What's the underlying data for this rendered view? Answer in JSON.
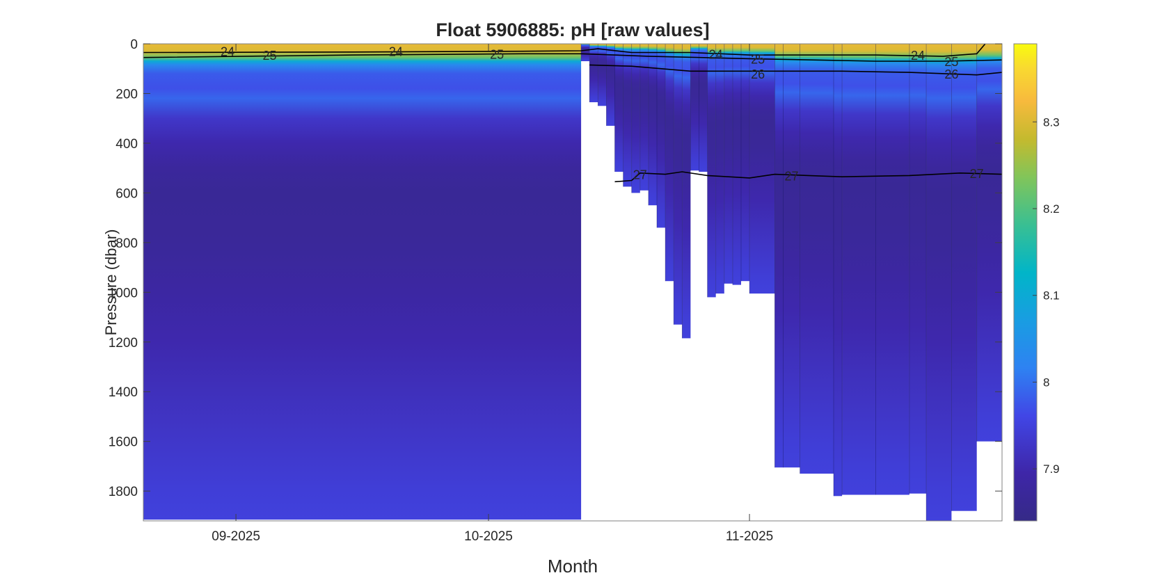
{
  "chart_data": {
    "type": "heatmap",
    "title": "Float 5906885: pH  [raw values]",
    "xlabel": "Month",
    "ylabel": "Pressure (dbar)",
    "x_range": [
      "2025-08-21",
      "2025-12-01"
    ],
    "y_range": [
      0,
      1920
    ],
    "y_reversed": true,
    "x_ticks": [
      "09-2025",
      "10-2025",
      "11-2025"
    ],
    "y_ticks": [
      0,
      200,
      400,
      600,
      800,
      1000,
      1200,
      1400,
      1600,
      1800
    ],
    "colorbar": {
      "range": [
        7.84,
        8.39
      ],
      "ticks": [
        "7.9",
        "8",
        "8.1",
        "8.2",
        "8.3"
      ],
      "colormap": "parula"
    },
    "profiles": [
      {
        "date": "2025-08-21",
        "max_pressure": 1915
      },
      {
        "date": "2025-10-12",
        "max_pressure": 70
      },
      {
        "date": "2025-10-13",
        "max_pressure": 235
      },
      {
        "date": "2025-10-14",
        "max_pressure": 250
      },
      {
        "date": "2025-10-15",
        "max_pressure": 330
      },
      {
        "date": "2025-10-16",
        "max_pressure": 515
      },
      {
        "date": "2025-10-17",
        "max_pressure": 575
      },
      {
        "date": "2025-10-18",
        "max_pressure": 600
      },
      {
        "date": "2025-10-19",
        "max_pressure": 590
      },
      {
        "date": "2025-10-20",
        "max_pressure": 650
      },
      {
        "date": "2025-10-21",
        "max_pressure": 740
      },
      {
        "date": "2025-10-22",
        "max_pressure": 955
      },
      {
        "date": "2025-10-23",
        "max_pressure": 1130
      },
      {
        "date": "2025-10-24",
        "max_pressure": 1185
      },
      {
        "date": "2025-10-25",
        "max_pressure": 510
      },
      {
        "date": "2025-10-26",
        "max_pressure": 515
      },
      {
        "date": "2025-10-27",
        "max_pressure": 1020
      },
      {
        "date": "2025-10-28",
        "max_pressure": 1005
      },
      {
        "date": "2025-10-29",
        "max_pressure": 965
      },
      {
        "date": "2025-10-30",
        "max_pressure": 970
      },
      {
        "date": "2025-10-31",
        "max_pressure": 955
      },
      {
        "date": "2025-11-01",
        "max_pressure": 1005
      },
      {
        "date": "2025-11-04",
        "max_pressure": 1705
      },
      {
        "date": "2025-11-05",
        "max_pressure": 1705
      },
      {
        "date": "2025-11-07",
        "max_pressure": 1730
      },
      {
        "date": "2025-11-11",
        "max_pressure": 1820
      },
      {
        "date": "2025-11-12",
        "max_pressure": 1815
      },
      {
        "date": "2025-11-16",
        "max_pressure": 1815
      },
      {
        "date": "2025-11-20",
        "max_pressure": 1810
      },
      {
        "date": "2025-11-22",
        "max_pressure": 1920
      },
      {
        "date": "2025-11-25",
        "max_pressure": 1880
      },
      {
        "date": "2025-11-28",
        "max_pressure": 1600
      },
      {
        "date": "2025-12-01",
        "max_pressure": 1600
      }
    ],
    "ph_profile": [
      {
        "p": 0,
        "ph": 8.31
      },
      {
        "p": 30,
        "ph": 8.3
      },
      {
        "p": 55,
        "ph": 8.22
      },
      {
        "p": 70,
        "ph": 8.1
      },
      {
        "p": 85,
        "ph": 8.03
      },
      {
        "p": 120,
        "ph": 7.98
      },
      {
        "p": 180,
        "ph": 7.97
      },
      {
        "p": 220,
        "ph": 7.99
      },
      {
        "p": 300,
        "ph": 7.93
      },
      {
        "p": 400,
        "ph": 7.9
      },
      {
        "p": 500,
        "ph": 7.875
      },
      {
        "p": 600,
        "ph": 7.865
      },
      {
        "p": 800,
        "ph": 7.87
      },
      {
        "p": 1000,
        "ph": 7.885
      },
      {
        "p": 1200,
        "ph": 7.9
      },
      {
        "p": 1400,
        "ph": 7.915
      },
      {
        "p": 1600,
        "ph": 7.93
      },
      {
        "p": 1800,
        "ph": 7.945
      },
      {
        "p": 1920,
        "ph": 7.95
      }
    ],
    "contours": [
      {
        "level": "24",
        "points": [
          {
            "date": "2025-08-21",
            "p": 35
          },
          {
            "date": "2025-09-15",
            "p": 33
          },
          {
            "date": "2025-10-05",
            "p": 30
          },
          {
            "date": "2025-10-12",
            "p": 28
          },
          {
            "date": "2025-10-14",
            "p": 20
          },
          {
            "date": "2025-10-18",
            "p": 35
          },
          {
            "date": "2025-10-25",
            "p": 35
          },
          {
            "date": "2025-11-01",
            "p": 45
          },
          {
            "date": "2025-11-16",
            "p": 45
          },
          {
            "date": "2025-11-24",
            "p": 50
          },
          {
            "date": "2025-11-28",
            "p": 40
          },
          {
            "date": "2025-11-29",
            "p": 0
          }
        ],
        "labels": [
          {
            "date": "2025-08-31",
            "p": 30
          },
          {
            "date": "2025-09-20",
            "p": 30
          },
          {
            "date": "2025-10-28",
            "p": 40
          },
          {
            "date": "2025-11-21",
            "p": 45
          }
        ]
      },
      {
        "level": "25",
        "points": [
          {
            "date": "2025-08-21",
            "p": 55
          },
          {
            "date": "2025-09-15",
            "p": 45
          },
          {
            "date": "2025-10-05",
            "p": 40
          },
          {
            "date": "2025-10-12",
            "p": 40
          },
          {
            "date": "2025-10-20",
            "p": 50
          },
          {
            "date": "2025-11-01",
            "p": 60
          },
          {
            "date": "2025-11-16",
            "p": 70
          },
          {
            "date": "2025-11-24",
            "p": 70
          },
          {
            "date": "2025-12-01",
            "p": 65
          }
        ],
        "labels": [
          {
            "date": "2025-09-05",
            "p": 45
          },
          {
            "date": "2025-10-02",
            "p": 40
          },
          {
            "date": "2025-11-02",
            "p": 60
          },
          {
            "date": "2025-11-25",
            "p": 70
          }
        ]
      },
      {
        "level": "26",
        "points": [
          {
            "date": "2025-10-13",
            "p": 85
          },
          {
            "date": "2025-10-18",
            "p": 90
          },
          {
            "date": "2025-10-25",
            "p": 110
          },
          {
            "date": "2025-11-01",
            "p": 110
          },
          {
            "date": "2025-11-12",
            "p": 110
          },
          {
            "date": "2025-11-20",
            "p": 115
          },
          {
            "date": "2025-11-28",
            "p": 125
          },
          {
            "date": "2025-12-01",
            "p": 115
          }
        ],
        "labels": [
          {
            "date": "2025-11-02",
            "p": 120
          },
          {
            "date": "2025-11-25",
            "p": 120
          }
        ]
      },
      {
        "level": "27",
        "points": [
          {
            "date": "2025-10-16",
            "p": 555
          },
          {
            "date": "2025-10-18",
            "p": 550
          },
          {
            "date": "2025-10-19",
            "p": 520
          },
          {
            "date": "2025-10-22",
            "p": 525
          },
          {
            "date": "2025-10-24",
            "p": 515
          },
          {
            "date": "2025-10-27",
            "p": 530
          },
          {
            "date": "2025-11-01",
            "p": 540
          },
          {
            "date": "2025-11-04",
            "p": 525
          },
          {
            "date": "2025-11-08",
            "p": 530
          },
          {
            "date": "2025-11-12",
            "p": 535
          },
          {
            "date": "2025-11-20",
            "p": 530
          },
          {
            "date": "2025-11-26",
            "p": 520
          },
          {
            "date": "2025-12-01",
            "p": 525
          }
        ],
        "labels": [
          {
            "date": "2025-10-19",
            "p": 525
          },
          {
            "date": "2025-11-06",
            "p": 530
          },
          {
            "date": "2025-11-28",
            "p": 520
          }
        ]
      }
    ]
  }
}
